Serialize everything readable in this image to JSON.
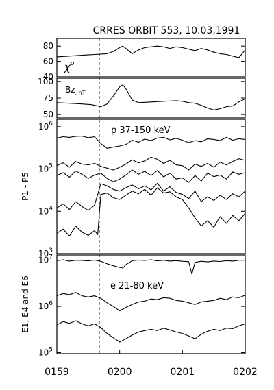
{
  "chart_data": {
    "type": "line",
    "title": "CRRES ORBIT 553, 10.03,1991",
    "x_ticks": [
      "0159",
      "0200",
      "0201",
      "0202"
    ],
    "marker_time": 0.675,
    "panels": [
      {
        "id": "chi",
        "label_main": "χ",
        "label_sup": "o",
        "ylabel": "",
        "scale": "linear",
        "ylim": [
          40,
          90
        ],
        "yticks": [
          {
            "v": 40,
            "t": "40"
          },
          {
            "v": 60,
            "t": "60"
          },
          {
            "v": 80,
            "t": "80"
          }
        ],
        "series": [
          {
            "x": [
              0,
              0.2,
              0.4,
              0.6,
              0.8,
              0.9,
              1.0,
              1.05,
              1.1,
              1.2,
              1.3,
              1.4,
              1.5,
              1.6,
              1.7,
              1.8,
              1.9,
              2.0,
              2.1,
              2.2,
              2.3,
              2.4,
              2.5,
              2.6,
              2.7,
              2.8,
              2.9,
              3.0
            ],
            "y": [
              66,
              67,
              68,
              69,
              70,
              73,
              78,
              80,
              77,
              70,
              75,
              78,
              79,
              80,
              79,
              77,
              79,
              78,
              76,
              74,
              77,
              75,
              72,
              70,
              69,
              67,
              65,
              75
            ]
          }
        ]
      },
      {
        "id": "bz",
        "label_main": "Bz",
        "label_sup": "",
        "label_sub": ", nT",
        "ylabel": "",
        "scale": "linear",
        "ylim": [
          45,
          105
        ],
        "yticks": [
          {
            "v": 50,
            "t": "50"
          },
          {
            "v": 75,
            "t": "75"
          },
          {
            "v": 100,
            "t": "100"
          }
        ],
        "series": [
          {
            "x": [
              0,
              0.2,
              0.4,
              0.55,
              0.7,
              0.8,
              0.9,
              1.0,
              1.05,
              1.1,
              1.2,
              1.3,
              1.5,
              1.7,
              1.9,
              2.0,
              2.1,
              2.2,
              2.3,
              2.4,
              2.5,
              2.6,
              2.7,
              2.8,
              2.9,
              3.0
            ],
            "y": [
              68,
              67,
              66,
              65,
              62,
              66,
              78,
              92,
              95,
              89,
              72,
              68,
              69,
              70,
              71,
              70,
              68,
              67,
              64,
              60,
              57,
              59,
              62,
              63,
              69,
              74
            ]
          }
        ]
      },
      {
        "id": "p",
        "label_main": "p 37-150 keV",
        "ylabel": "P1 - P5",
        "scale": "log",
        "ylim": [
          1000,
          1500000
        ],
        "yticks": [
          {
            "v": 1000,
            "t": "3"
          },
          {
            "v": 10000,
            "t": "4"
          },
          {
            "v": 100000,
            "t": "5"
          },
          {
            "v": 1000000,
            "t": "6"
          }
        ],
        "series": [
          {
            "x": [
              0,
              0.1,
              0.2,
              0.3,
              0.4,
              0.5,
              0.6,
              0.7,
              0.8,
              0.9,
              1.0,
              1.1,
              1.2,
              1.3,
              1.4,
              1.5,
              1.6,
              1.7,
              1.8,
              1.9,
              2.0,
              2.1,
              2.2,
              2.3,
              2.4,
              2.5,
              2.6,
              2.7,
              2.8,
              2.9,
              3.0
            ],
            "y": [
              540000,
              580000,
              560000,
              590000,
              600000,
              550000,
              580000,
              400000,
              310000,
              330000,
              350000,
              380000,
              480000,
              430000,
              510000,
              470000,
              540000,
              560000,
              490000,
              530000,
              480000,
              420000,
              470000,
              440000,
              520000,
              500000,
              470000,
              560000,
              480000,
              520000,
              500000
            ]
          },
          {
            "x": [
              0,
              0.1,
              0.2,
              0.3,
              0.4,
              0.5,
              0.6,
              0.7,
              0.8,
              0.9,
              1.0,
              1.1,
              1.2,
              1.3,
              1.4,
              1.5,
              1.6,
              1.7,
              1.8,
              1.9,
              2.0,
              2.1,
              2.2,
              2.3,
              2.4,
              2.5,
              2.6,
              2.7,
              2.8,
              2.9,
              3.0
            ],
            "y": [
              120000,
              140000,
              110000,
              150000,
              130000,
              125000,
              135000,
              115000,
              105000,
              95000,
              110000,
              130000,
              165000,
              140000,
              155000,
              190000,
              170000,
              135000,
              160000,
              125000,
              120000,
              95000,
              130000,
              115000,
              135000,
              110000,
              145000,
              125000,
              150000,
              175000,
              160000
            ]
          },
          {
            "x": [
              0,
              0.1,
              0.2,
              0.3,
              0.4,
              0.5,
              0.6,
              0.7,
              0.8,
              0.9,
              1.0,
              1.1,
              1.2,
              1.3,
              1.4,
              1.5,
              1.6,
              1.7,
              1.8,
              1.9,
              2.0,
              2.1,
              2.2,
              2.3,
              2.4,
              2.5,
              2.6,
              2.7,
              2.8,
              2.9,
              3.0
            ],
            "y": [
              70000,
              82000,
              64000,
              90000,
              75000,
              60000,
              72000,
              80000,
              60000,
              50000,
              58000,
              72000,
              95000,
              75000,
              88000,
              70000,
              92000,
              65000,
              80000,
              58000,
              62000,
              48000,
              70000,
              52000,
              80000,
              66000,
              72000,
              58000,
              85000,
              75000,
              82000
            ]
          },
          {
            "x": [
              0,
              0.1,
              0.2,
              0.3,
              0.4,
              0.5,
              0.6,
              0.7,
              0.8,
              0.9,
              1.0,
              1.1,
              1.2,
              1.3,
              1.4,
              1.5,
              1.6,
              1.7,
              1.8,
              1.9,
              2.0,
              2.1,
              2.2,
              2.3,
              2.4,
              2.5,
              2.6,
              2.7,
              2.8,
              2.9,
              3.0
            ],
            "y": [
              12000,
              15000,
              11000,
              17000,
              13000,
              10500,
              14000,
              45000,
              40000,
              33000,
              30000,
              36000,
              42000,
              34000,
              40000,
              32000,
              46000,
              30000,
              38000,
              28000,
              25000,
              20000,
              30000,
              17000,
              22000,
              18000,
              24000,
              19000,
              26000,
              22000,
              30000
            ]
          },
          {
            "x": [
              0,
              0.1,
              0.2,
              0.3,
              0.4,
              0.5,
              0.6,
              0.65,
              0.7,
              0.8,
              0.9,
              1.0,
              1.1,
              1.2,
              1.3,
              1.4,
              1.5,
              1.6,
              1.7,
              1.8,
              1.9,
              2.0,
              2.1,
              2.2,
              2.3,
              2.4,
              2.5,
              2.6,
              2.7,
              2.8,
              2.9,
              3.0
            ],
            "y": [
              3000,
              3800,
              2600,
              4500,
              3200,
              2700,
              3500,
              2800,
              25000,
              27000,
              21000,
              19000,
              24000,
              30000,
              26000,
              33000,
              24000,
              36000,
              27000,
              29000,
              22000,
              19000,
              12000,
              7000,
              4500,
              6000,
              4200,
              7500,
              5200,
              8000,
              6000,
              9000
            ]
          }
        ]
      },
      {
        "id": "e",
        "label_main": "e 21-80 keV",
        "ylabel": "E1, E4 and E6",
        "scale": "log",
        "ylim": [
          95000,
          13000000
        ],
        "yticks": [
          {
            "v": 100000,
            "t": "5"
          },
          {
            "v": 1000000,
            "t": "6"
          },
          {
            "v": 10000000,
            "t": "7"
          }
        ],
        "series": [
          {
            "x": [
              0,
              0.1,
              0.2,
              0.3,
              0.4,
              0.5,
              0.6,
              0.7,
              0.8,
              0.9,
              1.0,
              1.05,
              1.1,
              1.2,
              1.3,
              1.4,
              1.5,
              1.6,
              1.7,
              1.8,
              1.9,
              2.0,
              2.1,
              2.15,
              2.2,
              2.3,
              2.4,
              2.5,
              2.6,
              2.7,
              2.8,
              2.9,
              3.0
            ],
            "y": [
              9800000,
              10200000,
              9600000,
              10000000,
              9900000,
              9700000,
              10100000,
              9500000,
              8400000,
              7600000,
              7000000,
              6800000,
              8000000,
              9800000,
              10100000,
              9900000,
              10200000,
              9700000,
              10000000,
              9600000,
              9800000,
              9500000,
              9300000,
              5000000,
              9000000,
              9500000,
              9200000,
              9600000,
              9400000,
              9800000,
              9600000,
              10000000,
              10100000
            ]
          },
          {
            "x": [
              0,
              0.1,
              0.2,
              0.3,
              0.4,
              0.5,
              0.6,
              0.7,
              0.8,
              0.9,
              1.0,
              1.1,
              1.2,
              1.3,
              1.4,
              1.5,
              1.6,
              1.7,
              1.8,
              1.9,
              2.0,
              2.1,
              2.2,
              2.3,
              2.4,
              2.5,
              2.6,
              2.7,
              2.8,
              2.9,
              3.0
            ],
            "y": [
              1700000,
              1900000,
              1800000,
              2000000,
              1700000,
              1600000,
              1700000,
              1500000,
              1200000,
              1000000,
              800000,
              950000,
              1100000,
              1250000,
              1300000,
              1450000,
              1400000,
              1550000,
              1500000,
              1350000,
              1300000,
              1200000,
              1100000,
              1250000,
              1300000,
              1350000,
              1500000,
              1400000,
              1600000,
              1550000,
              1750000
            ]
          },
          {
            "x": [
              0,
              0.1,
              0.2,
              0.3,
              0.4,
              0.5,
              0.6,
              0.7,
              0.8,
              0.9,
              1.0,
              1.1,
              1.2,
              1.3,
              1.4,
              1.5,
              1.6,
              1.7,
              1.8,
              1.9,
              2.0,
              2.1,
              2.2,
              2.3,
              2.4,
              2.5,
              2.6,
              2.7,
              2.8,
              2.9,
              3.0
            ],
            "y": [
              400000,
              470000,
              430000,
              490000,
              420000,
              380000,
              420000,
              350000,
              260000,
              210000,
              170000,
              200000,
              240000,
              280000,
              300000,
              320000,
              300000,
              340000,
              310000,
              280000,
              260000,
              230000,
              200000,
              250000,
              290000,
              320000,
              300000,
              340000,
              330000,
              380000,
              420000
            ]
          }
        ]
      }
    ]
  }
}
